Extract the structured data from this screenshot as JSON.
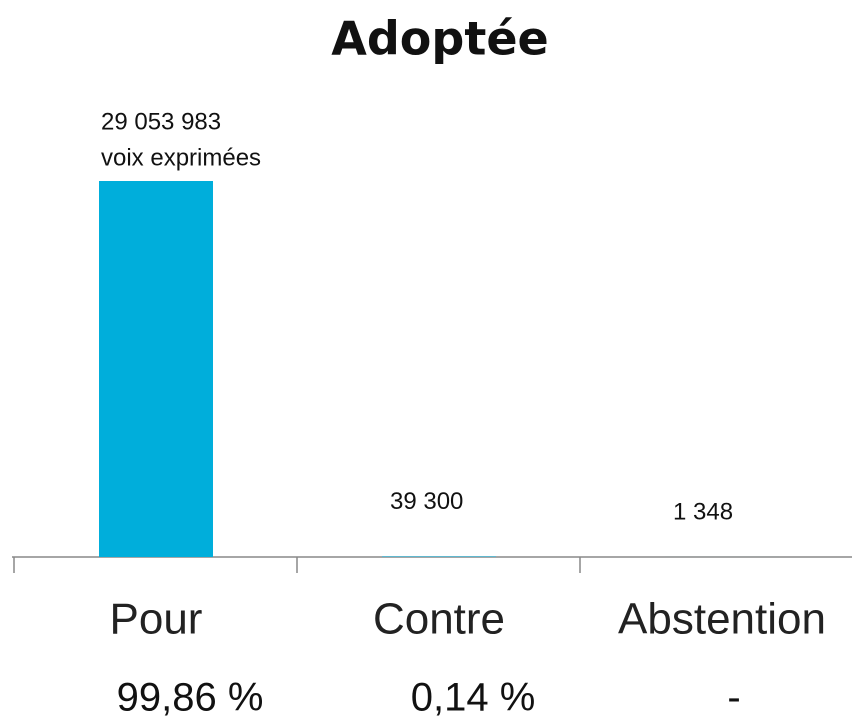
{
  "chart_data": {
    "type": "bar",
    "title": "Adoptée",
    "categories": [
      "Pour",
      "Contre",
      "Abstention"
    ],
    "values": [
      29053983,
      39300,
      1348
    ],
    "value_labels": [
      "29 053 983",
      "39 300",
      "1 348"
    ],
    "annotation": "voix exprimées",
    "percent_labels": [
      "99,86 %",
      "0,14 %",
      "-"
    ],
    "color": "#00aedb"
  }
}
